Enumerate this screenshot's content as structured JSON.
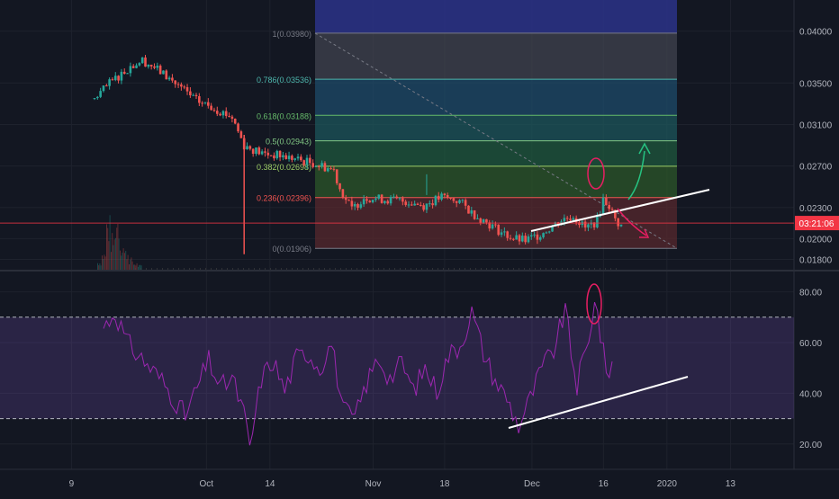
{
  "colors": {
    "background": "#131722",
    "grid": "#1e222d",
    "axis_text": "#b2b5be",
    "candle_up": "#26a69a",
    "candle_down": "#ef5350",
    "rsi_line": "#9c27b0",
    "rsi_band": "#7e57c2",
    "price_line": "#f23645",
    "trendline": "#ffffff",
    "arrow_up": "#26c281",
    "arrow_down": "#e91e63",
    "annotation_circle": "#e91e63"
  },
  "chart_data": [
    {
      "type": "candlestick",
      "panel": "price",
      "y_ticks": [
        "0.04000",
        "0.03500",
        "0.03100",
        "0.02700",
        "0.02300",
        "0.02000",
        "0.01800"
      ],
      "ylim": [
        0.017,
        0.043
      ],
      "current_price_label": "03:21:06",
      "current_price": 0.0215,
      "fib_levels": [
        {
          "label": "1(0.03980)",
          "value": 0.0398,
          "color": "#787b86"
        },
        {
          "label": "0.786(0.03536)",
          "value": 0.03536,
          "color": "#4db6ac"
        },
        {
          "label": "0.618(0.03188)",
          "value": 0.03188,
          "color": "#66bb6a"
        },
        {
          "label": "0.5(0.02943)",
          "value": 0.02943,
          "color": "#81c784"
        },
        {
          "label": "0.382(0.02698)",
          "value": 0.02698,
          "color": "#9ccc65"
        },
        {
          "label": "0.236(0.02396)",
          "value": 0.02396,
          "color": "#ef5350"
        },
        {
          "label": "0(0.01906)",
          "value": 0.01906,
          "color": "#787b86"
        }
      ],
      "price_path": [
        [
          0,
          0.0335
        ],
        [
          3,
          0.0352
        ],
        [
          6,
          0.0366
        ],
        [
          8,
          0.0372
        ],
        [
          10,
          0.0365
        ],
        [
          13,
          0.0352
        ],
        [
          17,
          0.0333
        ],
        [
          20,
          0.0326
        ],
        [
          23,
          0.0317
        ],
        [
          25,
          0.029
        ],
        [
          28,
          0.0282
        ],
        [
          31,
          0.028
        ],
        [
          34,
          0.0276
        ],
        [
          37,
          0.0272
        ],
        [
          40,
          0.0266
        ],
        [
          41,
          0.0248
        ],
        [
          43,
          0.0228
        ],
        [
          45,
          0.024
        ],
        [
          48,
          0.0238
        ],
        [
          52,
          0.0236
        ],
        [
          55,
          0.0232
        ],
        [
          58,
          0.024
        ],
        [
          61,
          0.0236
        ],
        [
          63,
          0.0225
        ],
        [
          66,
          0.0214
        ],
        [
          68,
          0.0206
        ],
        [
          70,
          0.02
        ],
        [
          72,
          0.0198
        ],
        [
          74,
          0.0203
        ],
        [
          76,
          0.021
        ],
        [
          78,
          0.0218
        ],
        [
          80,
          0.0222
        ],
        [
          82,
          0.021
        ],
        [
          84,
          0.0217
        ],
        [
          85,
          0.0238
        ],
        [
          86,
          0.0232
        ],
        [
          87,
          0.0218
        ],
        [
          88,
          0.0212
        ]
      ],
      "volume": [
        0.15,
        0.3,
        0.9,
        0.6,
        1.0,
        0.5,
        0.35,
        0.2,
        0.12,
        0.08
      ]
    },
    {
      "type": "line",
      "panel": "rsi",
      "y_ticks": [
        "80.00",
        "60.00",
        "40.00",
        "20.00"
      ],
      "ylim": [
        10,
        88
      ],
      "band": [
        30,
        70
      ],
      "rsi_path": [
        [
          0,
          66
        ],
        [
          2,
          72
        ],
        [
          4,
          60
        ],
        [
          6,
          55
        ],
        [
          8,
          50
        ],
        [
          10,
          45
        ],
        [
          12,
          38
        ],
        [
          14,
          31
        ],
        [
          16,
          42
        ],
        [
          18,
          53
        ],
        [
          20,
          42
        ],
        [
          22,
          46
        ],
        [
          24,
          32
        ],
        [
          25,
          18
        ],
        [
          27,
          46
        ],
        [
          29,
          53
        ],
        [
          31,
          41
        ],
        [
          33,
          54
        ],
        [
          35,
          56
        ],
        [
          37,
          50
        ],
        [
          39,
          60
        ],
        [
          41,
          33
        ],
        [
          43,
          30
        ],
        [
          45,
          44
        ],
        [
          47,
          54
        ],
        [
          49,
          46
        ],
        [
          51,
          52
        ],
        [
          53,
          41
        ],
        [
          55,
          50
        ],
        [
          57,
          41
        ],
        [
          59,
          55
        ],
        [
          61,
          59
        ],
        [
          63,
          72
        ],
        [
          65,
          56
        ],
        [
          67,
          45
        ],
        [
          69,
          38
        ],
        [
          71,
          27
        ],
        [
          73,
          38
        ],
        [
          75,
          50
        ],
        [
          77,
          57
        ],
        [
          79,
          73
        ],
        [
          80,
          56
        ],
        [
          81,
          43
        ],
        [
          82,
          53
        ],
        [
          83,
          59
        ],
        [
          84,
          79
        ],
        [
          85,
          63
        ],
        [
          86,
          48
        ],
        [
          87,
          52
        ]
      ]
    }
  ],
  "x_axis_labels": [
    {
      "label": "9",
      "t": 0.09
    },
    {
      "label": "Oct",
      "t": 0.26
    },
    {
      "label": "14",
      "t": 0.34
    },
    {
      "label": "Nov",
      "t": 0.47
    },
    {
      "label": "18",
      "t": 0.56
    },
    {
      "label": "Dec",
      "t": 0.67
    },
    {
      "label": "16",
      "t": 0.76
    },
    {
      "label": "2020",
      "t": 0.84
    },
    {
      "label": "13",
      "t": 0.92
    }
  ]
}
